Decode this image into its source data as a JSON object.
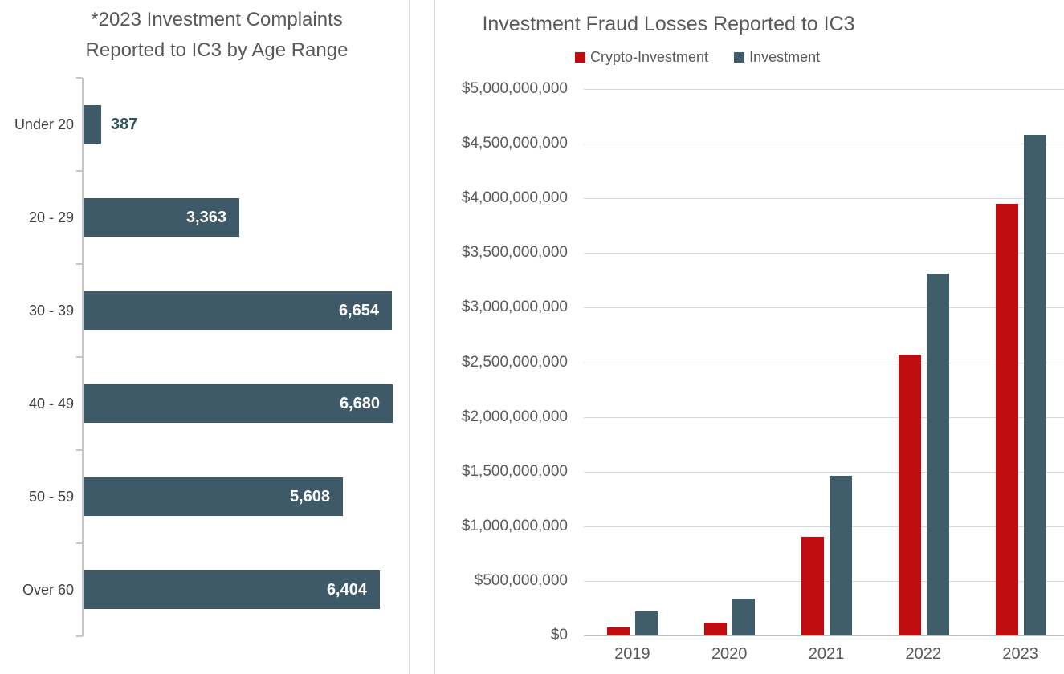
{
  "chart_data": [
    {
      "type": "bar",
      "orientation": "horizontal",
      "title": "*2023 Investment Complaints Reported to IC3 by Age Range",
      "title_lines": [
        "*2023 Investment Complaints",
        "Reported to IC3 by Age Range"
      ],
      "categories": [
        "Under 20",
        "20 - 29",
        "30 - 39",
        "40 - 49",
        "50 - 59",
        "Over 60"
      ],
      "values": [
        387,
        3363,
        6654,
        6680,
        5608,
        6404
      ],
      "value_labels": [
        "387",
        "3,363",
        "6,654",
        "6,680",
        "5,608",
        "6,404"
      ],
      "xlim": [
        0,
        6900
      ],
      "grid": false,
      "legend": false,
      "bar_color": "#3e5a68",
      "outside_label_color": "#33525f",
      "inside_label_color": "#ffffff"
    },
    {
      "type": "bar",
      "orientation": "vertical",
      "title": "Investment Fraud Losses Reported to IC3",
      "categories": [
        "2019",
        "2020",
        "2021",
        "2022",
        "2023"
      ],
      "series": [
        {
          "name": "Crypto-Investment",
          "color": "#c00b0f",
          "values": [
            70000000,
            120000000,
            900000000,
            2570000000,
            3950000000
          ]
        },
        {
          "name": "Investment",
          "color": "#3f5d6b",
          "values": [
            220000000,
            335000000,
            1460000000,
            3310000000,
            4580000000
          ]
        }
      ],
      "ylim": [
        0,
        5000000000
      ],
      "ytick_step": 500000000,
      "ytick_labels": [
        "$0",
        "$500,000,000",
        "$1,000,000,000",
        "$1,500,000,000",
        "$2,000,000,000",
        "$2,500,000,000",
        "$3,000,000,000",
        "$3,500,000,000",
        "$4,000,000,000",
        "$4,500,000,000",
        "$5,000,000,000"
      ],
      "grid": true,
      "legend_position": "top"
    }
  ]
}
